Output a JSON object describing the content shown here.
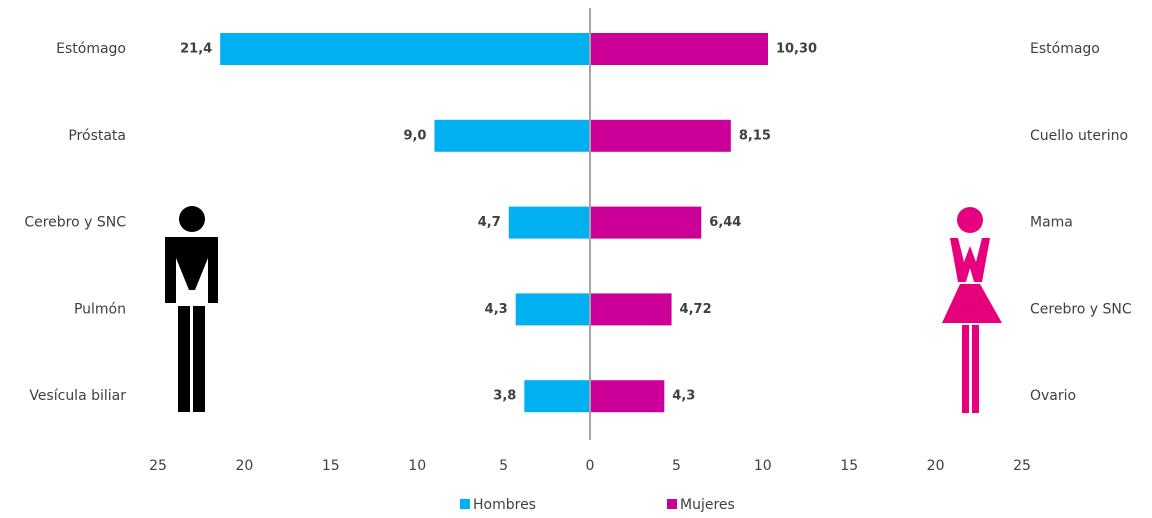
{
  "chart_data": {
    "type": "butterfly-bar",
    "series": [
      {
        "name": "Hombres",
        "color": "#00b0f0",
        "categories": [
          "Estómago",
          "Próstata",
          "Cerebro y SNC",
          "Pulmón",
          "Vesícula biliar"
        ],
        "values": [
          21.4,
          9.0,
          4.7,
          4.3,
          3.8
        ],
        "value_labels": [
          "21,4",
          "9,0",
          "4,7",
          "4,3",
          "3,8"
        ]
      },
      {
        "name": "Mujeres",
        "color": "#cc0099",
        "categories": [
          "Estómago",
          "Cuello uterino",
          "Mama",
          "Cerebro y SNC",
          "Ovario"
        ],
        "values": [
          10.3,
          8.15,
          6.44,
          4.72,
          4.3
        ],
        "value_labels": [
          "10,30",
          "8,15",
          "6,44",
          "4,72",
          "4,3"
        ]
      }
    ],
    "xlim": [
      -25,
      25
    ],
    "xticks": [
      {
        "value": -25,
        "label": "25"
      },
      {
        "value": -20,
        "label": "20"
      },
      {
        "value": -15,
        "label": "15"
      },
      {
        "value": -10,
        "label": "10"
      },
      {
        "value": -5,
        "label": "5"
      },
      0,
      5,
      10,
      15,
      20,
      25
    ]
  }
}
